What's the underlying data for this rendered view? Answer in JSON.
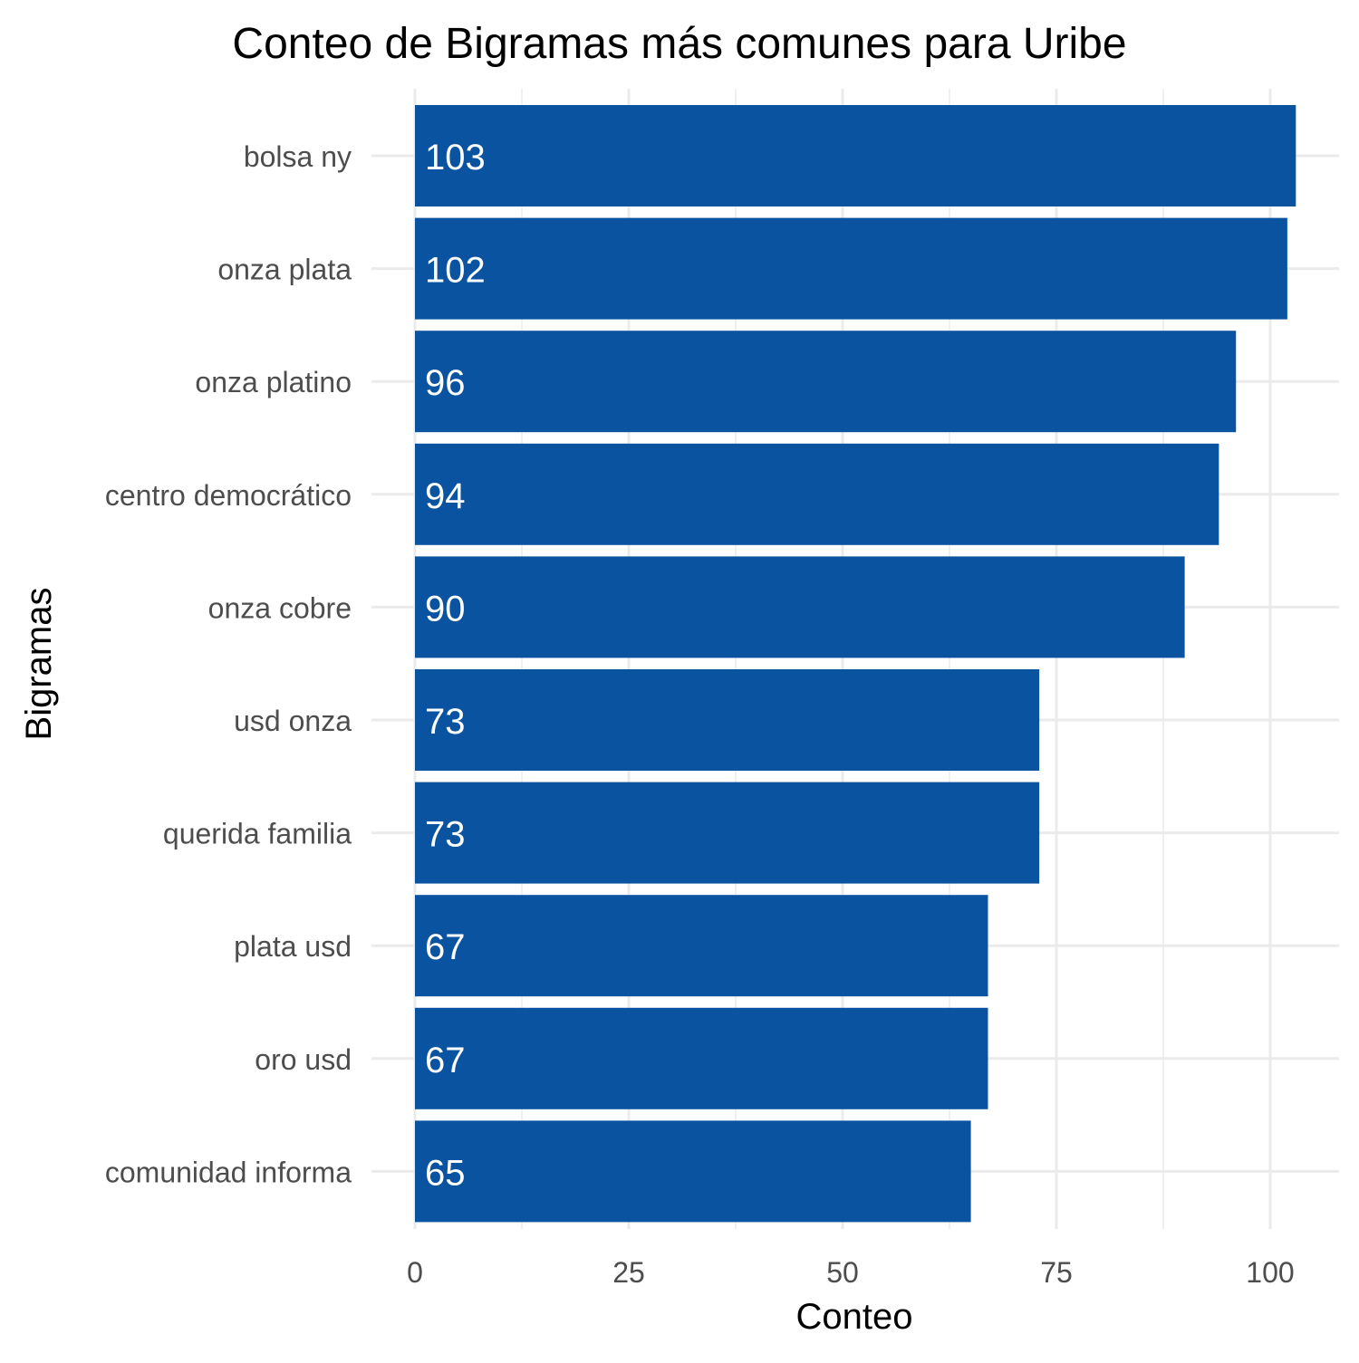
{
  "chart_data": {
    "type": "bar",
    "orientation": "horizontal",
    "title": "Conteo de Bigramas más comunes para Uribe",
    "xlabel": "Conteo",
    "ylabel": "Bigramas",
    "categories": [
      "bolsa ny",
      "onza plata",
      "onza platino",
      "centro democrático",
      "onza cobre",
      "usd onza",
      "querida familia",
      "plata usd",
      "oro usd",
      "comunidad informa"
    ],
    "values": [
      103,
      102,
      96,
      94,
      90,
      73,
      73,
      67,
      67,
      65
    ],
    "xlim": [
      0,
      108
    ],
    "x_ticks": [
      0,
      25,
      50,
      75,
      100
    ],
    "x_tick_labels": [
      "0",
      "25",
      "50",
      "75",
      "100"
    ],
    "bar_color": "#0A53A0",
    "grid": true,
    "legend": "none"
  }
}
